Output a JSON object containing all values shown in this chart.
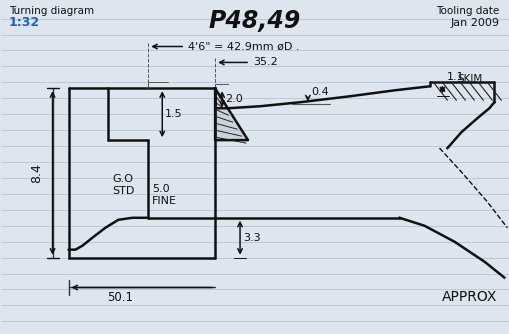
{
  "title": "P48,49",
  "subtitle_left": "Turning diagram",
  "scale": "1:32",
  "tooling_date_line1": "Tooling date",
  "tooling_date_line2": "Jan 2009",
  "dim_top1": "4'6\" = 42.9mm øD .",
  "dim_352": "35.2",
  "dim_84": "8.4",
  "dim_15": "1.5",
  "dim_20": "2.0",
  "dim_04": "0.4",
  "dim_11": "1.1",
  "dim_skim": "SKIM",
  "dim_gostd": "G.O\nSTD",
  "dim_50fine": "5.0\nFINE",
  "dim_33": "3.3",
  "dim_501": "50.1",
  "dim_approx": "APPROX",
  "bg_color": "#dde5ef",
  "line_color": "#111111",
  "blue_color": "#1565C0",
  "hatch_color": "#222222",
  "ruled_color": "#b0bece",
  "figsize": [
    5.1,
    3.34
  ],
  "dpi": 100
}
